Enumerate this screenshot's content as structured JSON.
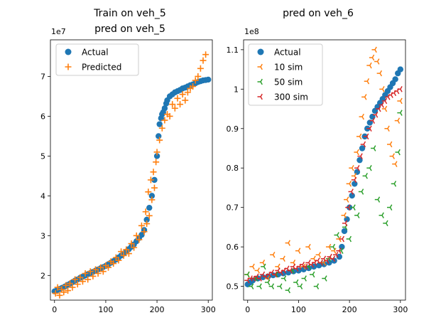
{
  "chart_data": [
    {
      "type": "scatter",
      "title_lines": [
        "Train on veh_5",
        "pred on veh_5"
      ],
      "xlabel": "",
      "ylabel": "",
      "offset_text": "1e7",
      "xlim": [
        -8,
        308
      ],
      "ylim": [
        1.38,
        7.92
      ],
      "xticks": [
        0,
        100,
        200,
        300
      ],
      "yticks": [
        2,
        3,
        4,
        5,
        6,
        7
      ],
      "legend_position": "upper-left",
      "series": [
        {
          "name": "Actual",
          "marker": "circle",
          "color": "#1f77b4",
          "x": [
            0,
            5,
            10,
            15,
            20,
            25,
            30,
            35,
            40,
            45,
            50,
            55,
            60,
            65,
            70,
            75,
            80,
            85,
            90,
            95,
            100,
            105,
            110,
            115,
            120,
            125,
            130,
            135,
            140,
            145,
            150,
            155,
            160,
            165,
            170,
            175,
            180,
            185,
            190,
            195,
            200,
            203,
            205,
            208,
            210,
            212,
            215,
            218,
            220,
            225,
            230,
            235,
            240,
            245,
            250,
            255,
            260,
            265,
            270,
            275,
            280,
            285,
            290,
            295,
            300
          ],
          "y": [
            1.6,
            1.63,
            1.66,
            1.69,
            1.72,
            1.76,
            1.79,
            1.83,
            1.87,
            1.9,
            1.94,
            1.97,
            2.0,
            2.03,
            2.06,
            2.09,
            2.12,
            2.15,
            2.18,
            2.21,
            2.24,
            2.28,
            2.32,
            2.36,
            2.4,
            2.45,
            2.5,
            2.55,
            2.6,
            2.66,
            2.72,
            2.78,
            2.86,
            2.94,
            3.02,
            3.14,
            3.4,
            3.7,
            4.0,
            4.4,
            5.0,
            5.5,
            5.8,
            5.95,
            6.05,
            6.1,
            6.2,
            6.32,
            6.4,
            6.5,
            6.55,
            6.6,
            6.63,
            6.66,
            6.7,
            6.72,
            6.75,
            6.78,
            6.8,
            6.83,
            6.86,
            6.88,
            6.9,
            6.91,
            6.92
          ]
        },
        {
          "name": "Predicted",
          "marker": "plus",
          "color": "#ff7f0e",
          "x": [
            2,
            6,
            10,
            14,
            18,
            22,
            26,
            30,
            35,
            40,
            45,
            50,
            55,
            60,
            65,
            70,
            75,
            80,
            85,
            90,
            95,
            100,
            105,
            110,
            115,
            120,
            125,
            130,
            135,
            140,
            145,
            150,
            155,
            160,
            165,
            170,
            175,
            178,
            180,
            183,
            185,
            188,
            190,
            193,
            195,
            198,
            200,
            205,
            210,
            215,
            220,
            225,
            230,
            235,
            240,
            245,
            250,
            255,
            260,
            265,
            270,
            275,
            280,
            285,
            290,
            295
          ],
          "y": [
            1.55,
            1.7,
            1.5,
            1.65,
            1.58,
            1.75,
            1.62,
            1.8,
            1.7,
            1.9,
            1.78,
            1.95,
            1.85,
            2.05,
            1.9,
            2.1,
            1.98,
            2.15,
            2.05,
            2.2,
            2.1,
            2.25,
            2.2,
            2.35,
            2.3,
            2.45,
            2.38,
            2.6,
            2.5,
            2.65,
            2.55,
            2.8,
            2.7,
            3.0,
            2.9,
            3.25,
            3.1,
            3.6,
            3.3,
            4.1,
            3.5,
            4.4,
            3.9,
            4.6,
            4.2,
            4.85,
            5.1,
            5.4,
            5.7,
            5.9,
            6.05,
            6.0,
            6.3,
            6.2,
            6.45,
            6.3,
            6.55,
            6.4,
            6.6,
            6.7,
            6.75,
            6.9,
            7.0,
            7.2,
            7.4,
            7.55
          ]
        }
      ]
    },
    {
      "type": "scatter",
      "title_lines": [
        "pred on veh_6"
      ],
      "xlabel": "",
      "ylabel": "",
      "offset_text": "1e8",
      "xlim": [
        -8,
        310
      ],
      "ylim": [
        0.465,
        1.125
      ],
      "xticks": [
        0,
        100,
        200,
        300
      ],
      "yticks": [
        0.5,
        0.6,
        0.7,
        0.8,
        0.9,
        1.0,
        1.1
      ],
      "legend_position": "upper-left",
      "series": [
        {
          "name": "Actual",
          "marker": "circle",
          "color": "#1f77b4",
          "x": [
            0,
            5,
            10,
            20,
            30,
            40,
            50,
            60,
            70,
            80,
            90,
            100,
            110,
            120,
            130,
            140,
            150,
            160,
            170,
            180,
            185,
            190,
            195,
            200,
            205,
            210,
            215,
            220,
            225,
            230,
            235,
            240,
            245,
            250,
            255,
            260,
            265,
            270,
            275,
            280,
            285,
            290,
            295,
            300
          ],
          "y": [
            0.505,
            0.51,
            0.515,
            0.52,
            0.523,
            0.525,
            0.528,
            0.53,
            0.533,
            0.535,
            0.538,
            0.54,
            0.543,
            0.546,
            0.55,
            0.553,
            0.556,
            0.56,
            0.565,
            0.575,
            0.6,
            0.64,
            0.67,
            0.7,
            0.73,
            0.76,
            0.79,
            0.82,
            0.85,
            0.88,
            0.9,
            0.915,
            0.93,
            0.945,
            0.955,
            0.965,
            0.975,
            0.985,
            0.995,
            1.005,
            1.015,
            1.025,
            1.04,
            1.05
          ]
        },
        {
          "name": "10 sim",
          "marker": "tri_left",
          "color": "#ff7f0e",
          "x": [
            0,
            10,
            20,
            30,
            40,
            50,
            60,
            70,
            80,
            90,
            100,
            110,
            120,
            130,
            140,
            150,
            160,
            170,
            180,
            190,
            195,
            200,
            205,
            210,
            215,
            220,
            225,
            230,
            235,
            240,
            245,
            250,
            255,
            260,
            265,
            270,
            275,
            280,
            285,
            290,
            295,
            300
          ],
          "y": [
            0.53,
            0.55,
            0.54,
            0.56,
            0.52,
            0.58,
            0.55,
            0.57,
            0.61,
            0.56,
            0.59,
            0.55,
            0.6,
            0.57,
            0.58,
            0.56,
            0.6,
            0.59,
            0.62,
            0.68,
            0.72,
            0.76,
            0.8,
            0.78,
            0.84,
            0.88,
            0.93,
            0.98,
            1.02,
            1.06,
            1.08,
            1.1,
            1.07,
            1.04,
            1.0,
            0.95,
            0.9,
            0.86,
            0.83,
            0.81,
            0.92,
            0.97
          ]
        },
        {
          "name": "50 sim",
          "marker": "tri_left",
          "color": "#2ca02c",
          "x": [
            0,
            8,
            16,
            24,
            32,
            40,
            48,
            56,
            64,
            72,
            80,
            88,
            96,
            104,
            112,
            120,
            128,
            136,
            144,
            152,
            160,
            168,
            176,
            184,
            192,
            200,
            208,
            216,
            224,
            232,
            240,
            248,
            256,
            264,
            272,
            280,
            288,
            296,
            300
          ],
          "y": [
            0.53,
            0.5,
            0.52,
            0.5,
            0.55,
            0.51,
            0.5,
            0.53,
            0.5,
            0.52,
            0.49,
            0.54,
            0.51,
            0.5,
            0.52,
            0.55,
            0.53,
            0.5,
            0.56,
            0.52,
            0.57,
            0.6,
            0.63,
            0.59,
            0.65,
            0.62,
            0.7,
            0.68,
            0.74,
            0.78,
            0.8,
            0.85,
            0.72,
            0.68,
            0.66,
            0.7,
            0.76,
            0.84,
            0.94
          ]
        },
        {
          "name": "300 sim",
          "marker": "tri_left",
          "color": "#d62728",
          "x": [
            0,
            6,
            12,
            18,
            24,
            30,
            36,
            42,
            48,
            54,
            60,
            66,
            72,
            78,
            84,
            90,
            96,
            102,
            108,
            114,
            120,
            126,
            132,
            138,
            144,
            150,
            156,
            162,
            168,
            174,
            180,
            186,
            192,
            198,
            204,
            210,
            216,
            222,
            228,
            234,
            240,
            246,
            252,
            258,
            264,
            270,
            276,
            282,
            288,
            294,
            300
          ],
          "y": [
            0.515,
            0.52,
            0.52,
            0.525,
            0.52,
            0.53,
            0.525,
            0.53,
            0.535,
            0.53,
            0.54,
            0.535,
            0.54,
            0.545,
            0.54,
            0.55,
            0.545,
            0.55,
            0.555,
            0.55,
            0.56,
            0.555,
            0.56,
            0.565,
            0.56,
            0.57,
            0.565,
            0.575,
            0.57,
            0.58,
            0.59,
            0.62,
            0.66,
            0.7,
            0.74,
            0.77,
            0.8,
            0.83,
            0.86,
            0.88,
            0.9,
            0.92,
            0.935,
            0.95,
            0.96,
            0.97,
            0.98,
            0.985,
            0.99,
            0.995,
            1.0
          ]
        }
      ]
    }
  ]
}
